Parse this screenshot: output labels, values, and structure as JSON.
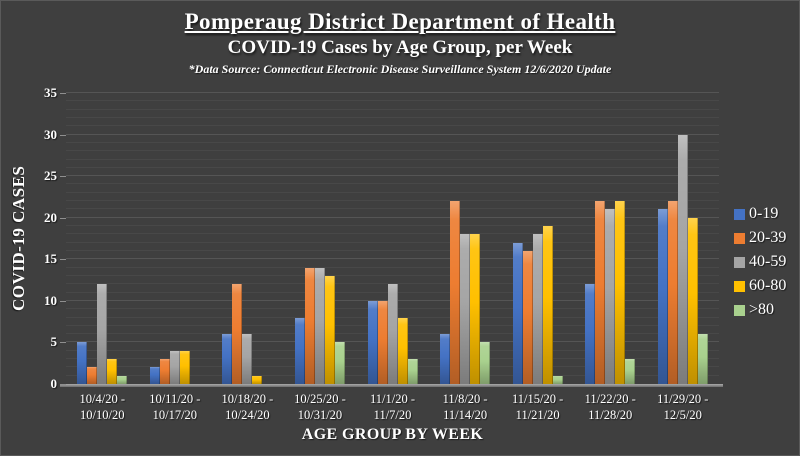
{
  "header": {
    "title": "Pomperaug District Department of Health",
    "subtitle": "COVID-19 Cases by Age Group, per Week",
    "source_note": "*Data Source: Connecticut Electronic Disease Surveillance System 12/6/2020 Update"
  },
  "chart_data": {
    "type": "bar",
    "title": "COVID-19 Cases by Age Group, per Week",
    "xlabel": "AGE GROUP BY WEEK",
    "ylabel": "COVID-19 CASES",
    "ylim": [
      0,
      35
    ],
    "y_ticks": [
      0,
      5,
      10,
      15,
      20,
      25,
      30,
      35
    ],
    "grid": true,
    "legend_position": "right",
    "categories": [
      "10/4/20 - 10/10/20",
      "10/11/20 - 10/17/20",
      "10/18/20 - 10/24/20",
      "10/25/20 - 10/31/20",
      "11/1/20 - 11/7/20",
      "11/8/20 - 11/14/20",
      "11/15/20 - 11/21/20",
      "11/22/20 - 11/28/20",
      "11/29/20 - 12/5/20"
    ],
    "series": [
      {
        "name": "0-19",
        "color": "#4472C4",
        "values": [
          5,
          2,
          6,
          8,
          10,
          6,
          17,
          12,
          21
        ]
      },
      {
        "name": "20-39",
        "color": "#ED7D31",
        "values": [
          2,
          3,
          12,
          14,
          10,
          22,
          16,
          22,
          22
        ]
      },
      {
        "name": "40-59",
        "color": "#A5A5A5",
        "values": [
          12,
          4,
          6,
          14,
          12,
          18,
          18,
          21,
          30
        ]
      },
      {
        "name": "60-80",
        "color": "#FFC000",
        "values": [
          3,
          4,
          1,
          13,
          8,
          18,
          19,
          22,
          20
        ]
      },
      {
        "name": ">80",
        "color": "#A9D18E",
        "values": [
          1,
          0,
          0,
          5,
          3,
          5,
          1,
          3,
          6
        ]
      }
    ]
  },
  "colors": {
    "background": "#3F3F3F",
    "text": "#FFFFFF",
    "gridline_minor": "#484848",
    "gridline_major": "#555555",
    "axis_line": "#8F8F8F"
  }
}
